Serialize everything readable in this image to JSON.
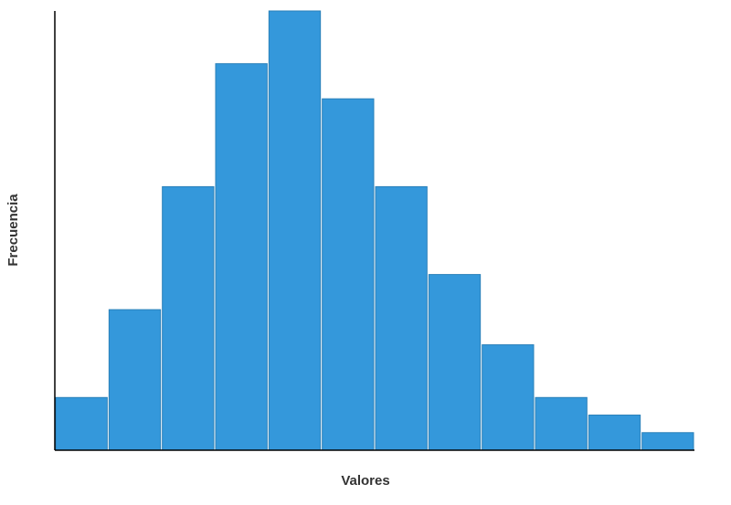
{
  "chart_data": {
    "type": "histogram",
    "x_label": "Valores",
    "y_label": "Frecuencia",
    "bins": [
      0,
      1,
      2,
      3,
      4,
      5,
      6,
      7,
      8,
      9,
      10,
      11,
      12
    ],
    "values": [
      3,
      8,
      15,
      22,
      25,
      20,
      15,
      10,
      6,
      3,
      2,
      1
    ],
    "color": "#3498db",
    "xlim": [
      0,
      12
    ],
    "ylim": [
      0,
      25
    ]
  }
}
